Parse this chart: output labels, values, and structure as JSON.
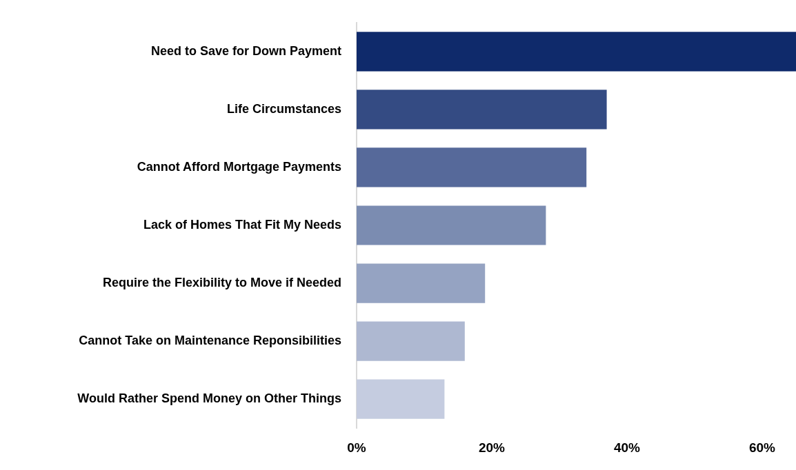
{
  "chart_data": {
    "type": "bar",
    "orientation": "horizontal",
    "categories": [
      "Need to Save for Down Payment",
      "Life Circumstances",
      "Cannot Afford Mortgage Payments",
      "Lack of Homes That Fit My Needs",
      "Require the Flexibility to Move if Needed",
      "Cannot Take on Maintenance Reponsibilities",
      "Would Rather Spend Money on Other Things"
    ],
    "values": [
      65,
      37,
      34,
      28,
      19,
      16,
      13
    ],
    "colors": [
      "#0f2a6b",
      "#344b83",
      "#56699a",
      "#7b8cb1",
      "#95a3c2",
      "#aeb8d1",
      "#c5cce0"
    ],
    "xlim": [
      0,
      65
    ],
    "xticks": [
      {
        "value": 0,
        "label": "0%"
      },
      {
        "value": 20,
        "label": "20%"
      },
      {
        "value": 40,
        "label": "40%"
      },
      {
        "value": 60,
        "label": "60%"
      }
    ],
    "grid": false,
    "legend": false
  }
}
